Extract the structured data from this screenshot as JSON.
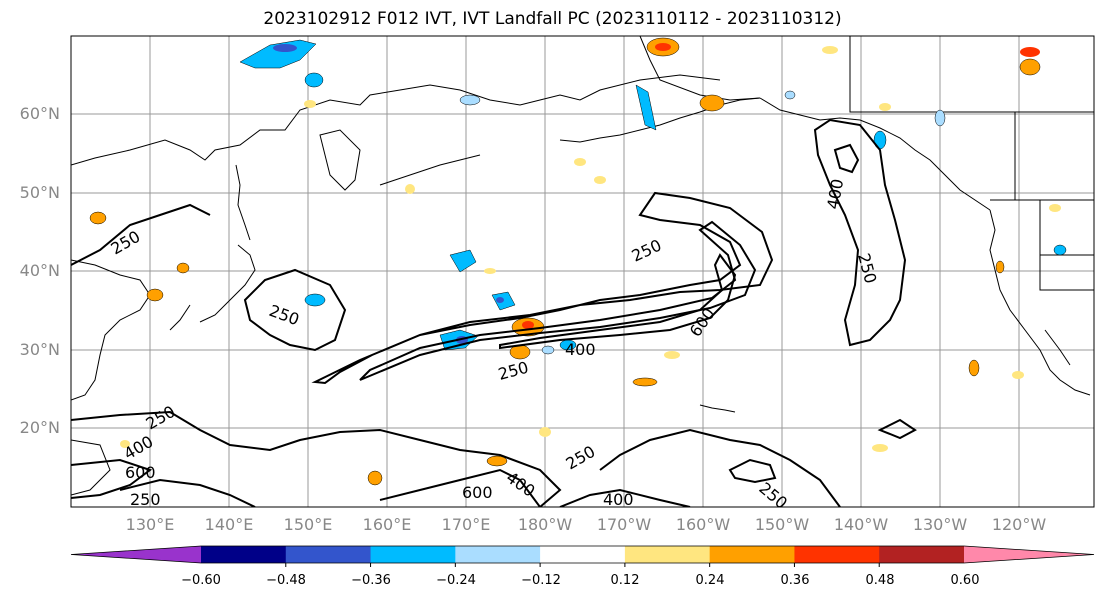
{
  "title": "2023102912 F012 IVT, IVT Landfall PC (2023110112 - 2023110312)",
  "lat_ticks": [
    "60°N",
    "50°N",
    "40°N",
    "30°N",
    "20°N"
  ],
  "lon_ticks": [
    "130°E",
    "140°E",
    "150°E",
    "160°E",
    "170°E",
    "180°W",
    "170°W",
    "160°W",
    "150°W",
    "140°W",
    "130°W",
    "120°W"
  ],
  "contour_labels": [
    "250",
    "400",
    "600"
  ],
  "colorbar": {
    "ticks": [
      "−0.60",
      "−0.48",
      "−0.36",
      "−0.24",
      "−0.12",
      "0.12",
      "0.24",
      "0.36",
      "0.48",
      "0.60"
    ],
    "colors": [
      "#9933cc",
      "#000088",
      "#3355cc",
      "#00bbff",
      "#aaddff",
      "#ffffff",
      "#ffe680",
      "#ffa000",
      "#ff3300",
      "#b22222",
      "#ff88aa"
    ]
  }
}
